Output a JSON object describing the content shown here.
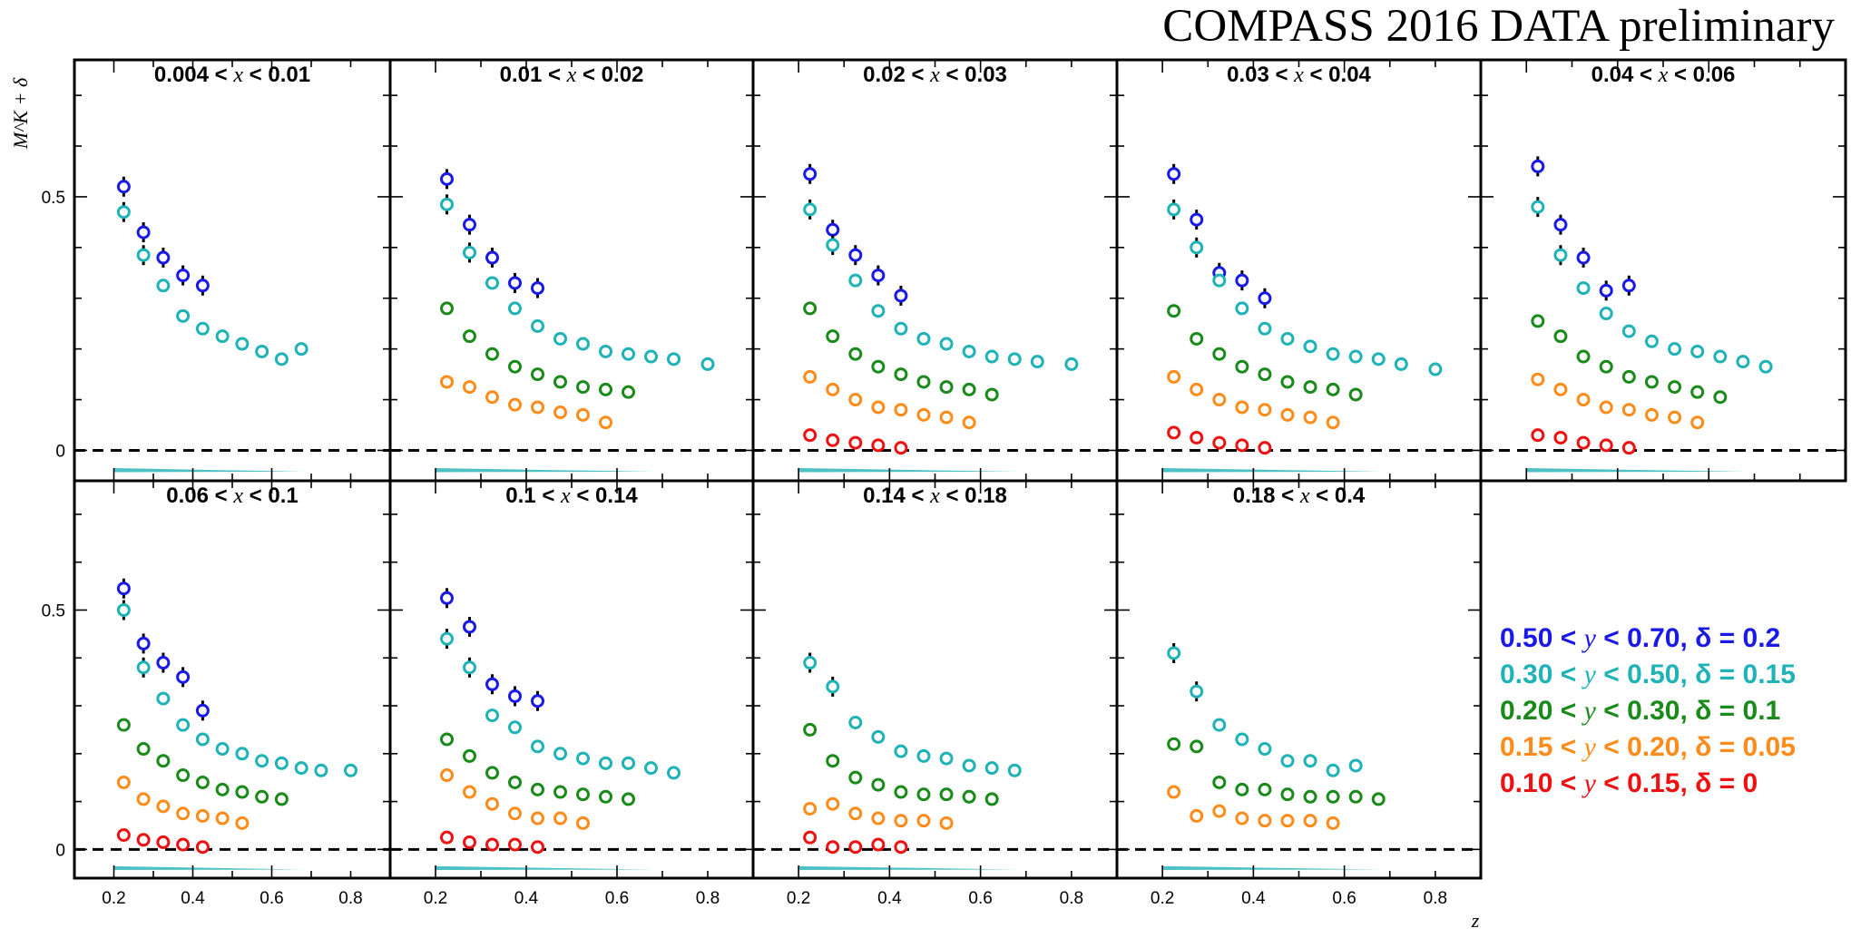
{
  "title": "COMPASS 2016 DATA preliminary",
  "chart_data": {
    "type": "scatter",
    "ylabel": "M^K + δ",
    "xlabel": "z",
    "xlim": [
      0.1,
      0.9
    ],
    "ylim": [
      -0.06,
      0.77
    ],
    "x_ticks": [
      "0.2",
      "0.4",
      "0.6",
      "0.8"
    ],
    "y_ticks": [
      "0",
      "0.5"
    ],
    "reference_line": {
      "y": 0,
      "style": "dashed"
    },
    "z_bins": [
      0.225,
      0.275,
      0.325,
      0.375,
      0.425,
      0.475,
      0.525,
      0.575,
      0.625,
      0.675,
      0.725,
      0.8
    ],
    "series": [
      {
        "name": "0.50 < y < 0.70, δ = 0.2",
        "color": "#1a1ae6"
      },
      {
        "name": "0.30 < y < 0.50, δ = 0.15",
        "color": "#1fb3b8"
      },
      {
        "name": "0.20 < y < 0.30, δ = 0.1",
        "color": "#1a8a1a"
      },
      {
        "name": "0.15 < y < 0.20, δ = 0.05",
        "color": "#ff8c1a"
      },
      {
        "name": "0.10 < y < 0.15, δ = 0",
        "color": "#ee1111"
      }
    ],
    "panels": [
      {
        "label_lo": "0.004",
        "label_hi": "0.01",
        "values": [
          [
            0.52,
            0.43,
            0.38,
            0.345,
            0.325
          ],
          [
            0.47,
            0.385,
            0.325,
            0.265,
            0.24,
            0.225,
            0.21,
            0.195,
            0.18,
            0.2
          ],
          [],
          [],
          []
        ]
      },
      {
        "label_lo": "0.01",
        "label_hi": "0.02",
        "values": [
          [
            0.535,
            0.445,
            0.38,
            0.33,
            0.32
          ],
          [
            0.485,
            0.39,
            0.33,
            0.28,
            0.245,
            0.22,
            0.21,
            0.195,
            0.19,
            0.185,
            0.18,
            0.17
          ],
          [
            0.28,
            0.225,
            0.19,
            0.165,
            0.15,
            0.135,
            0.125,
            0.12,
            0.115
          ],
          [
            0.135,
            0.125,
            0.105,
            0.09,
            0.085,
            0.075,
            0.07,
            0.055
          ],
          []
        ]
      },
      {
        "label_lo": "0.02",
        "label_hi": "0.03",
        "values": [
          [
            0.545,
            0.435,
            0.385,
            0.345,
            0.305
          ],
          [
            0.475,
            0.405,
            0.335,
            0.275,
            0.24,
            0.22,
            0.21,
            0.195,
            0.185,
            0.18,
            0.175,
            0.17
          ],
          [
            0.28,
            0.225,
            0.19,
            0.165,
            0.15,
            0.135,
            0.125,
            0.12,
            0.11
          ],
          [
            0.145,
            0.12,
            0.1,
            0.085,
            0.08,
            0.07,
            0.065,
            0.055
          ],
          [
            0.03,
            0.02,
            0.015,
            0.01,
            0.005
          ]
        ]
      },
      {
        "label_lo": "0.03",
        "label_hi": "0.04",
        "values": [
          [
            0.545,
            0.455,
            0.35,
            0.335,
            0.3
          ],
          [
            0.475,
            0.4,
            0.335,
            0.28,
            0.24,
            0.22,
            0.205,
            0.19,
            0.185,
            0.18,
            0.17,
            0.16
          ],
          [
            0.275,
            0.22,
            0.19,
            0.165,
            0.15,
            0.135,
            0.125,
            0.12,
            0.11
          ],
          [
            0.145,
            0.12,
            0.1,
            0.085,
            0.08,
            0.07,
            0.065,
            0.055
          ],
          [
            0.035,
            0.025,
            0.015,
            0.01,
            0.005
          ]
        ]
      },
      {
        "label_lo": "0.04",
        "label_hi": "0.06",
        "values": [
          [
            0.56,
            0.445,
            0.38,
            0.315,
            0.325
          ],
          [
            0.48,
            0.385,
            0.32,
            0.27,
            0.235,
            0.215,
            0.2,
            0.195,
            0.185,
            0.175,
            0.165
          ],
          [
            0.255,
            0.225,
            0.185,
            0.165,
            0.145,
            0.135,
            0.125,
            0.115,
            0.105
          ],
          [
            0.14,
            0.12,
            0.1,
            0.085,
            0.08,
            0.07,
            0.065,
            0.055
          ],
          [
            0.03,
            0.025,
            0.015,
            0.01,
            0.005
          ]
        ]
      },
      {
        "label_lo": "0.06",
        "label_hi": "0.1",
        "values": [
          [
            0.545,
            0.43,
            0.39,
            0.36,
            0.29
          ],
          [
            0.5,
            0.38,
            0.315,
            0.26,
            0.23,
            0.21,
            0.2,
            0.185,
            0.18,
            0.17,
            0.165,
            0.165
          ],
          [
            0.26,
            0.21,
            0.185,
            0.155,
            0.14,
            0.125,
            0.12,
            0.11,
            0.105
          ],
          [
            0.14,
            0.105,
            0.09,
            0.075,
            0.07,
            0.065,
            0.055
          ],
          [
            0.03,
            0.02,
            0.015,
            0.01,
            0.005
          ]
        ]
      },
      {
        "label_lo": "0.1",
        "label_hi": "0.14",
        "values": [
          [
            0.525,
            0.465,
            0.345,
            0.32,
            0.31
          ],
          [
            0.44,
            0.38,
            0.28,
            0.255,
            0.215,
            0.2,
            0.19,
            0.18,
            0.18,
            0.17,
            0.16
          ],
          [
            0.23,
            0.195,
            0.16,
            0.14,
            0.125,
            0.12,
            0.115,
            0.11,
            0.105
          ],
          [
            0.155,
            0.12,
            0.095,
            0.075,
            0.065,
            0.065,
            0.055
          ],
          [
            0.025,
            0.015,
            0.01,
            0.01,
            0.005
          ]
        ]
      },
      {
        "label_lo": "0.14",
        "label_hi": "0.18",
        "values": [
          [],
          [
            0.39,
            0.34,
            0.265,
            0.235,
            0.205,
            0.195,
            0.19,
            0.175,
            0.17,
            0.165
          ],
          [
            0.25,
            0.185,
            0.15,
            0.135,
            0.12,
            0.115,
            0.115,
            0.11,
            0.105
          ],
          [
            0.085,
            0.095,
            0.075,
            0.065,
            0.06,
            0.06,
            0.055
          ],
          [
            0.025,
            0.005,
            0.005,
            0.01,
            0.005
          ]
        ]
      },
      {
        "label_lo": "0.18",
        "label_hi": "0.4",
        "values": [
          [],
          [
            0.41,
            0.33,
            0.26,
            0.23,
            0.21,
            0.185,
            0.185,
            0.165,
            0.175
          ],
          [
            0.22,
            0.215,
            0.14,
            0.125,
            0.125,
            0.115,
            0.11,
            0.11,
            0.11,
            0.105
          ],
          [
            0.12,
            0.07,
            0.08,
            0.065,
            0.06,
            0.06,
            0.06,
            0.055
          ],
          []
        ]
      }
    ]
  }
}
